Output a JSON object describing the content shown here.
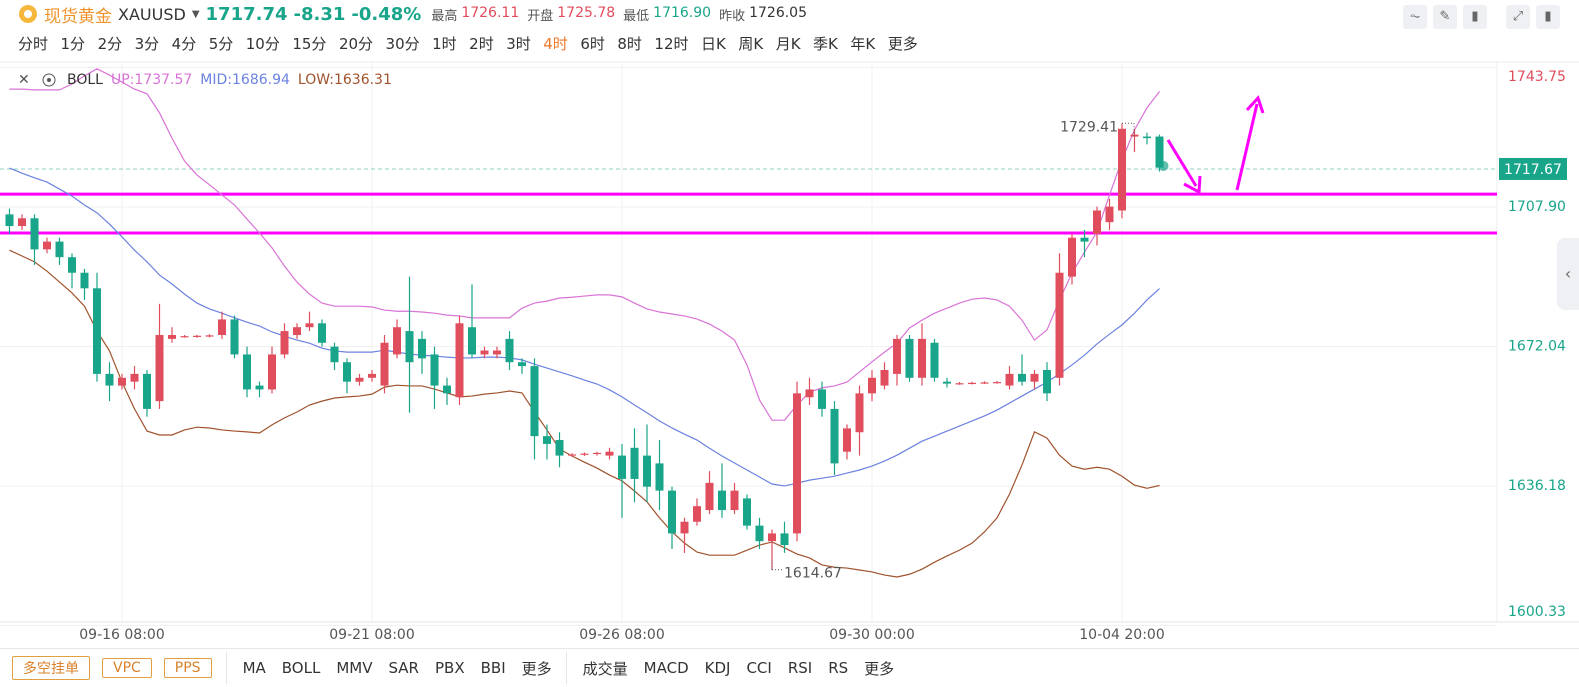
{
  "header": {
    "name": "现货黄金",
    "symbol": "XAUUSD",
    "price": "1717.74",
    "change": "-8.31",
    "change_pct": "-0.48%",
    "stats": [
      {
        "label": "最高",
        "value": "1726.11",
        "color": "#e04d5c"
      },
      {
        "label": "开盘",
        "value": "1725.78",
        "color": "#e04d5c"
      },
      {
        "label": "最低",
        "value": "1716.90",
        "color": "#19a58a"
      },
      {
        "label": "昨收",
        "value": "1726.05",
        "color": "#333333"
      }
    ]
  },
  "periods": [
    {
      "label": "分时"
    },
    {
      "label": "1分"
    },
    {
      "label": "2分"
    },
    {
      "label": "3分"
    },
    {
      "label": "4分"
    },
    {
      "label": "5分"
    },
    {
      "label": "10分"
    },
    {
      "label": "15分"
    },
    {
      "label": "20分"
    },
    {
      "label": "30分"
    },
    {
      "label": "1时"
    },
    {
      "label": "2时"
    },
    {
      "label": "3时"
    },
    {
      "label": "4时",
      "active": true
    },
    {
      "label": "6时"
    },
    {
      "label": "8时"
    },
    {
      "label": "12时"
    },
    {
      "label": "日K"
    },
    {
      "label": "周K"
    },
    {
      "label": "月K"
    },
    {
      "label": "季K"
    },
    {
      "label": "年K"
    },
    {
      "label": "更多"
    }
  ],
  "bottom_buttons": [
    "多空挂单",
    "VPC",
    "PPS"
  ],
  "main_indicators": [
    "MA",
    "BOLL",
    "MMV",
    "SAR",
    "PBX",
    "BBI",
    "更多"
  ],
  "sub_indicators": [
    "成交量",
    "MACD",
    "KDJ",
    "CCI",
    "RSI",
    "RS",
    "更多"
  ],
  "chart_data": {
    "type": "candlestick",
    "indicator": "BOLL",
    "up_color": "#e04d5c",
    "down_color": "#19a58a",
    "ylim": [
      1600.33,
      1743.75
    ],
    "yticks": [
      1600.33,
      1636.18,
      1672.04,
      {
        "value": 1707.9,
        "label": "1707.90"
      },
      1743.75
    ],
    "grid": true,
    "current_price": 1717.67,
    "levels": [
      1711.2,
      1701.2
    ],
    "levels_color": "#ff00ff",
    "categories": [
      null,
      null,
      null,
      null,
      null,
      null,
      null,
      null,
      null,
      "09-16 08:00",
      null,
      null,
      null,
      null,
      null,
      null,
      null,
      null,
      null,
      null,
      null,
      null,
      null,
      null,
      null,
      null,
      null,
      null,
      null,
      "09-21 08:00",
      null,
      null,
      null,
      null,
      null,
      null,
      null,
      null,
      null,
      null,
      null,
      null,
      null,
      null,
      null,
      null,
      null,
      null,
      null,
      "09-26 08:00",
      null,
      null,
      null,
      null,
      null,
      null,
      null,
      null,
      null,
      null,
      null,
      null,
      null,
      null,
      null,
      null,
      null,
      null,
      null,
      "09-30 00:00",
      null,
      null,
      null,
      null,
      null,
      null,
      null,
      null,
      null,
      null,
      null,
      null,
      null,
      null,
      null,
      null,
      null,
      null,
      null,
      "10-04 20:00",
      null,
      null,
      null
    ],
    "open": [
      1706,
      1703,
      1705,
      1697,
      1699,
      1695,
      1691,
      1687,
      1665,
      1662,
      1663,
      1665,
      1658,
      1674,
      1674.5,
      1674.6,
      1674.7,
      1675,
      1679,
      1670,
      1662,
      1661,
      1670,
      1675,
      1677,
      1678,
      1672,
      1668,
      1663,
      1664,
      1662,
      1670,
      1676,
      1674,
      1670,
      1662,
      1659,
      1677,
      1670,
      1670,
      1674,
      1668,
      1667,
      1649,
      1648,
      1644,
      1644.3,
      1644.5,
      1644,
      1644,
      1646,
      1644,
      1642,
      1635,
      1624,
      1627,
      1630,
      1635,
      1630,
      1633,
      1626,
      1622,
      1624,
      1624,
      1659,
      1661,
      1656,
      1645,
      1650,
      1660,
      1662,
      1665,
      1674,
      1664,
      1673,
      1663,
      1662.5,
      1662.6,
      1662.7,
      1662.8,
      1662,
      1665,
      1663,
      1666,
      1664,
      1690,
      1700,
      1701,
      1704,
      1707,
      1726,
      1726,
      1726
    ],
    "high": [
      1707.5,
      1706,
      1706,
      1700,
      1700,
      1696,
      1692,
      1691,
      1668,
      1665,
      1667,
      1666,
      1683,
      1677,
      1675,
      1675,
      1675.2,
      1681,
      1680,
      1672,
      1663,
      1672,
      1678,
      1678,
      1681,
      1679,
      1673,
      1669,
      1665,
      1666,
      1675,
      1679,
      1690,
      1676,
      1672,
      1664,
      1680,
      1688,
      1672,
      1672,
      1676,
      1669,
      1669,
      1652,
      1650,
      1644.6,
      1644.8,
      1645,
      1646,
      1647,
      1651,
      1652,
      1648,
      1636,
      1628,
      1633,
      1640,
      1642,
      1637,
      1634,
      1628,
      1625,
      1627,
      1663,
      1664,
      1663,
      1658,
      1652,
      1662,
      1666,
      1668,
      1675,
      1675,
      1678,
      1674,
      1664,
      1662.9,
      1663,
      1663.1,
      1663.2,
      1667,
      1670,
      1666,
      1668,
      1696,
      1701,
      1702,
      1708,
      1710,
      1729.41,
      1728,
      1727,
      1726.5
    ],
    "low": [
      1701,
      1702,
      1693,
      1696,
      1693,
      1687,
      1684,
      1663,
      1658,
      1661,
      1661,
      1654,
      1656,
      1673,
      1674.3,
      1674.3,
      1674.4,
      1674,
      1669,
      1659,
      1659,
      1660,
      1669,
      1674,
      1676,
      1672,
      1666,
      1660,
      1662,
      1663,
      1660,
      1669,
      1655,
      1665,
      1656,
      1657,
      1657,
      1669,
      1669,
      1669,
      1666,
      1665,
      1643,
      1643,
      1641,
      1643.7,
      1643.9,
      1644,
      1643,
      1628,
      1632,
      1632,
      1630,
      1620,
      1619,
      1626,
      1629,
      1628,
      1629,
      1625,
      1620,
      1614.67,
      1619,
      1622,
      1657,
      1654,
      1639,
      1643,
      1644,
      1658,
      1661,
      1662,
      1663,
      1662,
      1663,
      1661.5,
      1662.2,
      1662.3,
      1662.4,
      1662.5,
      1661,
      1662,
      1661,
      1658,
      1662,
      1688,
      1695,
      1698,
      1702,
      1705,
      1722,
      1724,
      1717
    ],
    "close": [
      1703,
      1705,
      1697,
      1699,
      1695,
      1691,
      1687,
      1665,
      1662,
      1664,
      1665,
      1656,
      1675,
      1675,
      1674.7,
      1674.8,
      1674.9,
      1679,
      1670,
      1661,
      1661,
      1670,
      1676,
      1677,
      1678,
      1673,
      1668,
      1663,
      1664,
      1665,
      1673,
      1677,
      1668,
      1669,
      1662,
      1660,
      1678,
      1670,
      1671,
      1671,
      1668,
      1667,
      1649,
      1647,
      1644,
      1644.3,
      1644.5,
      1644.7,
      1645,
      1638,
      1638,
      1636,
      1635,
      1624,
      1627,
      1631,
      1637,
      1630,
      1635,
      1626,
      1622,
      1624,
      1621,
      1660,
      1661,
      1656,
      1642,
      1651,
      1660,
      1664,
      1666,
      1674,
      1664,
      1674,
      1664,
      1662.5,
      1662.6,
      1662.7,
      1662.8,
      1662.9,
      1665,
      1663,
      1665,
      1660,
      1691,
      1700,
      1699,
      1707,
      1708,
      1728,
      1726.5,
      1725.6,
      1718
    ],
    "series": [
      {
        "name": "UP:1737.57",
        "color": "#d973d6",
        "values": [
          1738.2,
          1738.2,
          1738,
          1738,
          1738,
          1739.5,
          1741.6,
          1743.4,
          1741.8,
          1740,
          1738.2,
          1737,
          1732.1,
          1725.6,
          1719.7,
          1716.1,
          1713.6,
          1711,
          1708.4,
          1704.8,
          1701.2,
          1697.4,
          1692.7,
          1688.6,
          1685.5,
          1683.2,
          1682.4,
          1682.4,
          1682.4,
          1682.2,
          1681.4,
          1681.1,
          1681.1,
          1680.9,
          1680.6,
          1680.1,
          1679.9,
          1679.4,
          1679.4,
          1679.4,
          1679.4,
          1681.9,
          1683.2,
          1683.7,
          1684.5,
          1684.7,
          1685,
          1685.3,
          1685.3,
          1684.8,
          1683.2,
          1681.7,
          1680.9,
          1680.4,
          1679.9,
          1679.1,
          1677.8,
          1676,
          1673.7,
          1667.3,
          1658.3,
          1653.1,
          1653.1,
          1657,
          1660.3,
          1661.4,
          1661.9,
          1662.9,
          1665.5,
          1668.1,
          1670.6,
          1672.9,
          1676.8,
          1678.8,
          1680.6,
          1681.9,
          1683.2,
          1684.2,
          1684.5,
          1684,
          1682.4,
          1678.8,
          1673.7,
          1676.3,
          1684,
          1690.9,
          1696.3,
          1701.5,
          1711,
          1720,
          1727.7,
          1733.4,
          1737.57
        ]
      },
      {
        "name": "MID:1686.94",
        "color": "#6b82e0",
        "values": [
          1717.9,
          1716.6,
          1715.4,
          1714.3,
          1712.5,
          1710.7,
          1708.4,
          1706.4,
          1703.5,
          1700.2,
          1696.8,
          1693.8,
          1690.4,
          1688.1,
          1685.5,
          1683.2,
          1681.7,
          1680.6,
          1679.4,
          1678.3,
          1677.3,
          1675.8,
          1674.7,
          1673.7,
          1672.9,
          1671.6,
          1670.9,
          1670.6,
          1670.6,
          1670.6,
          1671.1,
          1670.6,
          1670.1,
          1669.8,
          1669.6,
          1669.3,
          1669.1,
          1669.1,
          1669.3,
          1669.3,
          1669.1,
          1668.6,
          1667.5,
          1666.5,
          1665.5,
          1664.5,
          1663.4,
          1662.4,
          1660.9,
          1659.1,
          1657,
          1655,
          1652.9,
          1651.1,
          1649.5,
          1648,
          1645.9,
          1643.9,
          1642.1,
          1640.3,
          1638.5,
          1636.7,
          1636.2,
          1636.9,
          1637.7,
          1638.2,
          1638.7,
          1639.5,
          1640.3,
          1641.3,
          1642.6,
          1644.1,
          1645.9,
          1647.7,
          1649,
          1650.3,
          1651.6,
          1652.9,
          1654.2,
          1655.7,
          1657.5,
          1659.3,
          1661.1,
          1662.9,
          1665,
          1667.3,
          1669.8,
          1672.7,
          1675.2,
          1677.6,
          1680.6,
          1684,
          1686.94
        ]
      },
      {
        "name": "LOW:1636.31",
        "color": "#a0522d",
        "values": [
          1696.8,
          1695.3,
          1693.8,
          1691.4,
          1688.6,
          1685.8,
          1682.4,
          1676,
          1670.9,
          1662.9,
          1656,
          1650.3,
          1649.3,
          1649.3,
          1650.6,
          1651.3,
          1651.1,
          1650.6,
          1650.3,
          1650.1,
          1649.8,
          1651.9,
          1653.7,
          1655.2,
          1657,
          1658,
          1658.8,
          1659.1,
          1659.3,
          1659.8,
          1661.6,
          1662.1,
          1661.9,
          1661.9,
          1661.1,
          1660.1,
          1659.1,
          1659.3,
          1659.8,
          1660.1,
          1660.6,
          1660.1,
          1655.2,
          1650.6,
          1645.7,
          1643.9,
          1642.3,
          1640.8,
          1639,
          1637.5,
          1634.9,
          1632.1,
          1628,
          1624.4,
          1621.5,
          1619.2,
          1618.4,
          1618.4,
          1618.4,
          1619.7,
          1621,
          1621.8,
          1620.3,
          1618.7,
          1617.7,
          1615.9,
          1615.3,
          1615.1,
          1614.6,
          1614.1,
          1613.3,
          1612.8,
          1613.5,
          1614.8,
          1616.6,
          1618.2,
          1619.7,
          1621.5,
          1624.4,
          1628,
          1634.1,
          1641.6,
          1650.1,
          1648.5,
          1644.1,
          1641.3,
          1640.5,
          1641,
          1640.5,
          1638.7,
          1636.4,
          1635.6,
          1636.31
        ]
      }
    ]
  }
}
